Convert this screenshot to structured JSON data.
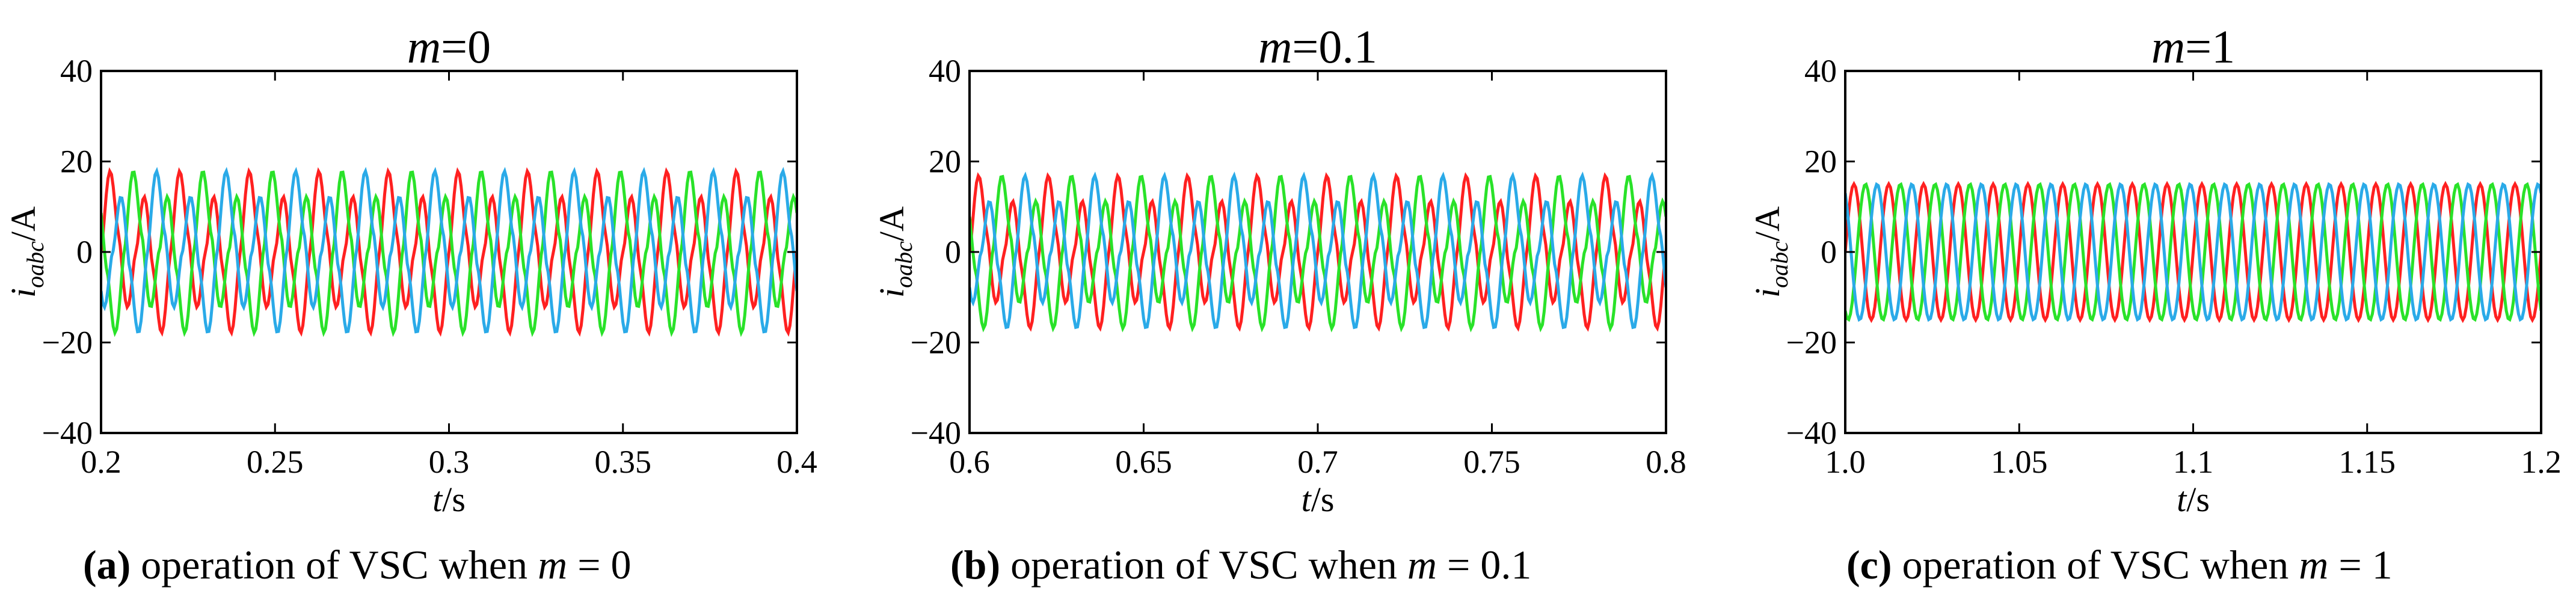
{
  "chart_data": [
    {
      "type": "line",
      "panel_id": "a",
      "title_var": "m",
      "title_value": "=0",
      "ylabel_var": "i",
      "ylabel_sub": "oabc",
      "ylabel_unit": "/A",
      "xlabel_var": "t",
      "xlabel_unit": "/s",
      "xlim": [
        0.2,
        0.4
      ],
      "ylim": [
        -40,
        40
      ],
      "xticks": [
        0.2,
        0.25,
        0.3,
        0.35,
        0.4
      ],
      "xtick_labels": [
        "0.2",
        "0.25",
        "0.3",
        "0.35",
        "0.4"
      ],
      "yticks": [
        -40,
        -20,
        0,
        20,
        40
      ],
      "ytick_labels": [
        "−40",
        "−20",
        "0",
        "20",
        "40"
      ],
      "grid": false,
      "legend": "none",
      "waveform": {
        "fundamental_hz": 50,
        "harmonic_hz": 100,
        "f1_amp": 4,
        "harmonic_amp": 15,
        "sample_step": 0.0005
      },
      "series": [
        {
          "color": "#ff2020",
          "phase_deg": 0
        },
        {
          "color": "#29e229",
          "phase_deg": -120
        },
        {
          "color": "#2aaae8",
          "phase_deg": 120
        }
      ],
      "caption_label": "(a)",
      "caption_text": " operation of VSC when ",
      "caption_var": "m",
      "caption_value": " = 0"
    },
    {
      "type": "line",
      "panel_id": "b",
      "title_var": "m",
      "title_value": "=0.1",
      "ylabel_var": "i",
      "ylabel_sub": "oabc",
      "ylabel_unit": "/A",
      "xlabel_var": "t",
      "xlabel_unit": "/s",
      "xlim": [
        0.6,
        0.8
      ],
      "ylim": [
        -40,
        40
      ],
      "xticks": [
        0.6,
        0.65,
        0.7,
        0.75,
        0.8
      ],
      "xtick_labels": [
        "0.6",
        "0.65",
        "0.7",
        "0.75",
        "0.8"
      ],
      "yticks": [
        -40,
        -20,
        0,
        20,
        40
      ],
      "ytick_labels": [
        "−40",
        "−20",
        "0",
        "20",
        "40"
      ],
      "grid": false,
      "legend": "none",
      "waveform": {
        "fundamental_hz": 50,
        "harmonic_hz": 100,
        "f1_amp": 4,
        "harmonic_amp": 14,
        "sample_step": 0.0005
      },
      "series": [
        {
          "color": "#ff2020",
          "phase_deg": 0
        },
        {
          "color": "#29e229",
          "phase_deg": -120
        },
        {
          "color": "#2aaae8",
          "phase_deg": 120
        }
      ],
      "caption_label": "(b)",
      "caption_text": " operation of VSC when ",
      "caption_var": "m",
      "caption_value": " = 0.1"
    },
    {
      "type": "line",
      "panel_id": "c",
      "title_var": "m",
      "title_value": "=1",
      "ylabel_var": "i",
      "ylabel_sub": "oabc",
      "ylabel_unit": "/A",
      "xlabel_var": "t",
      "xlabel_unit": "/s",
      "xlim": [
        1.0,
        1.2
      ],
      "ylim": [
        -40,
        40
      ],
      "xticks": [
        1.0,
        1.05,
        1.1,
        1.15,
        1.2
      ],
      "xtick_labels": [
        "1.0",
        "1.05",
        "1.1",
        "1.15",
        "1.2"
      ],
      "yticks": [
        -40,
        -20,
        0,
        20,
        40
      ],
      "ytick_labels": [
        "−40",
        "−20",
        "0",
        "20",
        "40"
      ],
      "grid": false,
      "legend": "none",
      "waveform": {
        "fundamental_hz": 100,
        "harmonic_hz": 0,
        "f1_amp": 15,
        "harmonic_amp": 0,
        "sample_step": 0.0005
      },
      "series": [
        {
          "color": "#ff2020",
          "phase_deg": 0
        },
        {
          "color": "#29e229",
          "phase_deg": -120
        },
        {
          "color": "#2aaae8",
          "phase_deg": 120
        }
      ],
      "caption_label": "(c)",
      "caption_text": " operation of VSC when ",
      "caption_var": "m",
      "caption_value": " = 1"
    }
  ]
}
